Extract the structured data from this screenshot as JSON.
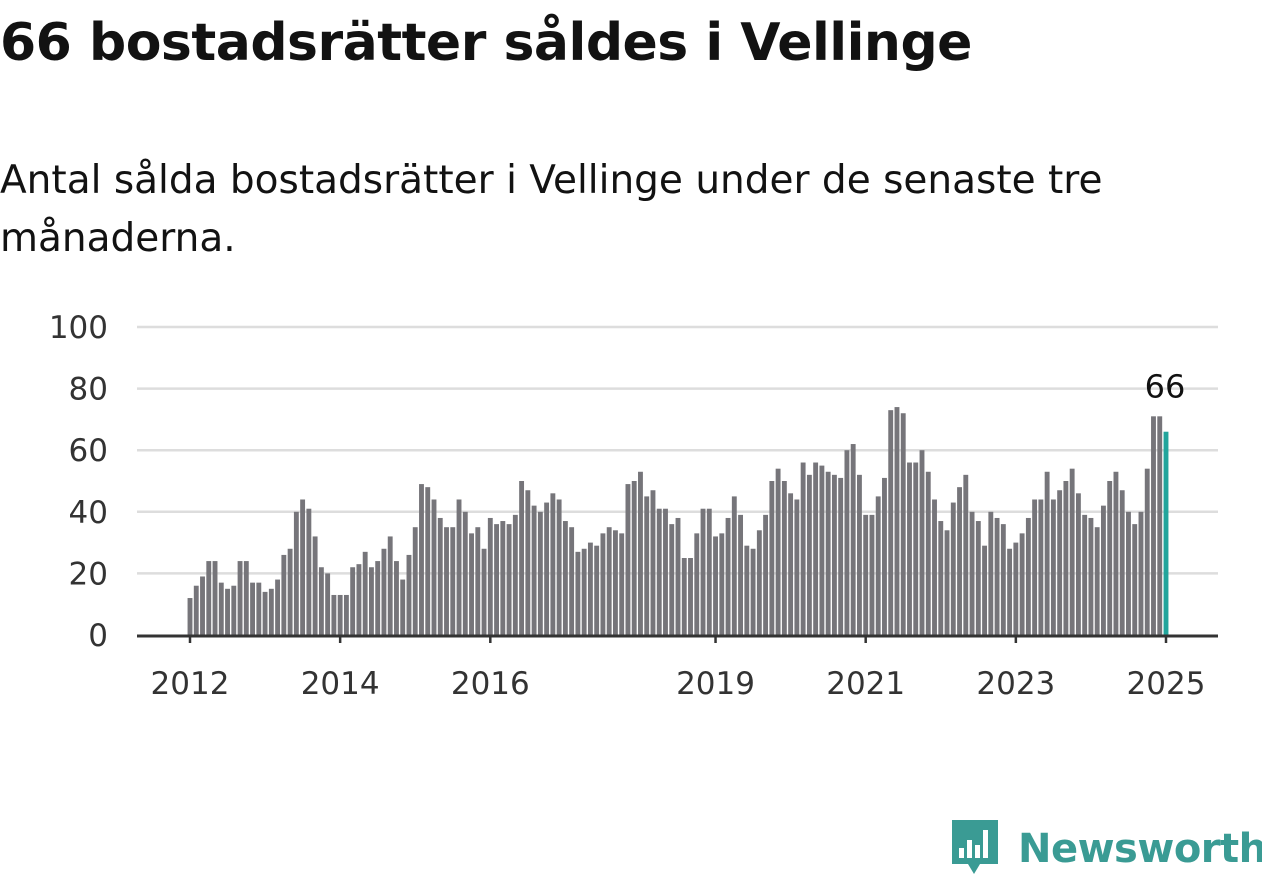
{
  "title": "66 bostadsrätter såldes i Vellinge",
  "subtitle": "Antal sålda bostadsrätter i Vellinge under de senaste tre månaderna.",
  "brand": {
    "name": "Newsworthy",
    "icon": "newsworthy-logo-icon",
    "color": "#3a9b94"
  },
  "chart_data": {
    "type": "bar",
    "title": "",
    "xlabel": "",
    "ylabel": "",
    "ylim": [
      0,
      100
    ],
    "yticks": [
      0,
      20,
      40,
      60,
      80,
      100
    ],
    "grid": true,
    "xticks": [
      {
        "label": "2012",
        "index": 0
      },
      {
        "label": "2014",
        "index": 24
      },
      {
        "label": "2016",
        "index": 48
      },
      {
        "label": "2019",
        "index": 84
      },
      {
        "label": "2021",
        "index": 108
      },
      {
        "label": "2023",
        "index": 132
      },
      {
        "label": "2025",
        "index": 156
      }
    ],
    "colors": {
      "bar": "#76757a",
      "highlight": "#22a59c",
      "grid": "#dddddd",
      "axis": "#333333"
    },
    "highlight_label": "66",
    "series": [
      {
        "values": [
          12,
          16,
          19,
          24,
          24,
          17,
          15,
          16,
          24,
          24,
          17,
          17,
          14,
          15,
          18,
          26,
          28,
          40,
          44,
          41,
          32,
          22,
          20,
          13,
          13,
          13,
          22,
          23,
          27,
          22,
          24,
          28,
          32,
          24,
          18,
          26,
          35,
          49,
          48,
          44,
          38,
          35,
          35,
          44,
          40,
          33,
          35,
          28,
          38,
          36,
          37,
          36,
          39,
          50,
          47,
          42,
          40,
          43,
          46,
          44,
          37,
          35,
          27,
          28,
          30,
          29,
          33,
          35,
          34,
          33,
          49,
          50,
          53,
          45,
          47,
          41,
          41,
          36,
          38,
          25,
          25,
          33,
          41,
          41,
          32,
          33,
          38,
          45,
          39,
          29,
          28,
          34,
          39,
          50,
          54,
          50,
          46,
          44,
          56,
          52,
          56,
          55,
          53,
          52,
          51,
          60,
          62,
          52,
          39,
          39,
          45,
          51,
          73,
          74,
          72,
          56,
          56,
          60,
          53,
          44,
          37,
          34,
          43,
          48,
          52,
          40,
          37,
          29,
          40,
          38,
          36,
          28,
          30,
          33,
          38,
          44,
          44,
          53,
          44,
          47,
          50,
          54,
          46,
          39,
          38,
          35,
          42,
          50,
          53,
          47,
          40,
          36,
          40,
          54,
          71,
          71,
          66
        ]
      }
    ]
  }
}
